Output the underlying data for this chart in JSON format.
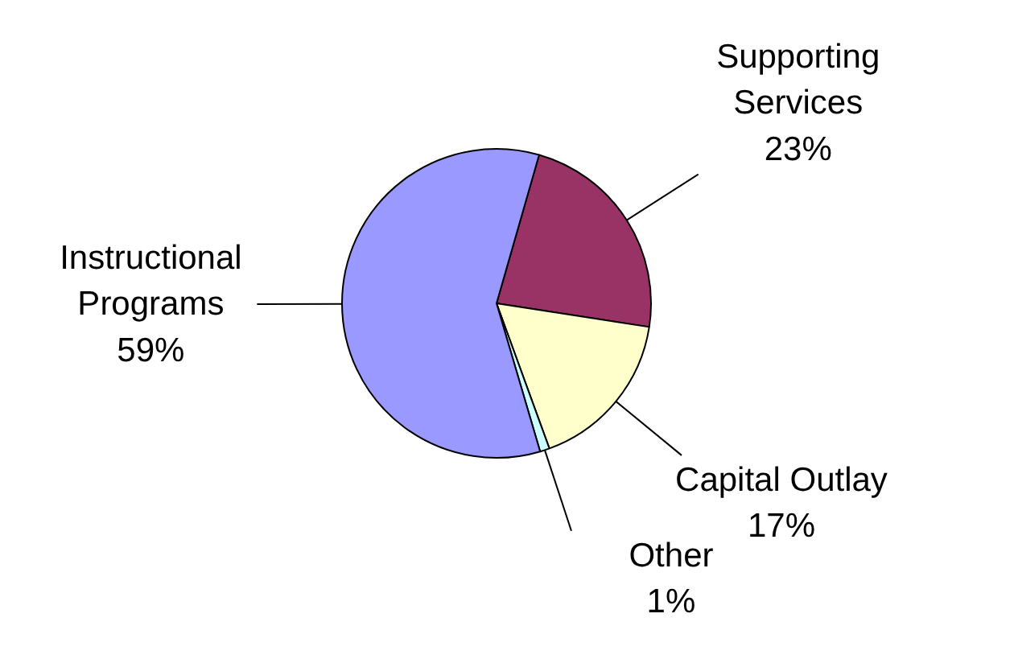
{
  "chart_data": {
    "type": "pie",
    "categories": [
      "Supporting\nServices",
      "Capital Outlay",
      "Other",
      "Instructional\nPrograms"
    ],
    "values": [
      23,
      17,
      1,
      59
    ],
    "colors": [
      "#993366",
      "#ffffcc",
      "#ccffff",
      "#9999ff"
    ],
    "value_labels": [
      "23%",
      "17%",
      "1%",
      "59%"
    ]
  }
}
